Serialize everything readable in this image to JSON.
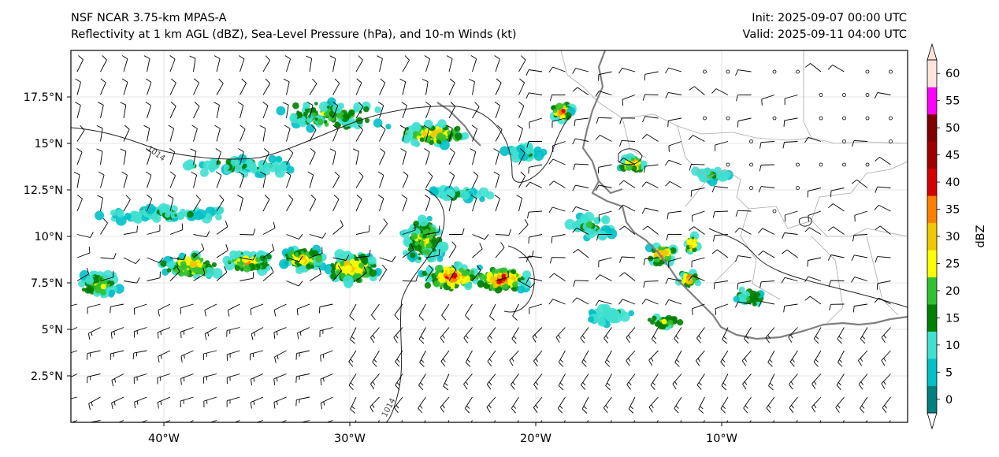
{
  "header": {
    "left_line1": "NSF NCAR 3.75-km MPAS-A",
    "left_line2": "Reflectivity at 1 km AGL (dBZ), Sea-Level Pressure (hPa), and 10-m Winds (kt)",
    "right_line1": "Init: 2025-09-07 00:00 UTC",
    "right_line2": "Valid: 2025-09-11 04:00 UTC"
  },
  "map": {
    "lon_ticks": [
      {
        "value": -40,
        "label": "40°W"
      },
      {
        "value": -30,
        "label": "30°W"
      },
      {
        "value": -20,
        "label": "20°W"
      },
      {
        "value": -10,
        "label": "10°W"
      }
    ],
    "lat_ticks": [
      {
        "value": 2.5,
        "label": "2.5°N"
      },
      {
        "value": 5,
        "label": "5°N"
      },
      {
        "value": 7.5,
        "label": "7.5°N"
      },
      {
        "value": 10,
        "label": "10°N"
      },
      {
        "value": 12.5,
        "label": "12.5°N"
      },
      {
        "value": 15,
        "label": "15°N"
      },
      {
        "value": 17.5,
        "label": "17.5°N"
      }
    ],
    "lon_range": [
      -45,
      0
    ],
    "lat_range": [
      0,
      20
    ],
    "isobar_labels": [
      "1014",
      "1014"
    ]
  },
  "colorbar": {
    "label": "dBZ",
    "levels": [
      {
        "value": "0",
        "color": "#008080"
      },
      {
        "value": "5",
        "color": "#00c0c8"
      },
      {
        "value": "10",
        "color": "#40e0d0"
      },
      {
        "value": "15",
        "color": "#008000"
      },
      {
        "value": "20",
        "color": "#32c032"
      },
      {
        "value": "25",
        "color": "#ffff00"
      },
      {
        "value": "30",
        "color": "#f0c800"
      },
      {
        "value": "35",
        "color": "#ff8000"
      },
      {
        "value": "40",
        "color": "#d40000"
      },
      {
        "value": "45",
        "color": "#a00000"
      },
      {
        "value": "50",
        "color": "#800000"
      },
      {
        "value": "55",
        "color": "#ff00ff"
      },
      {
        "value": "60",
        "color": "#ffe4dc"
      }
    ]
  }
}
